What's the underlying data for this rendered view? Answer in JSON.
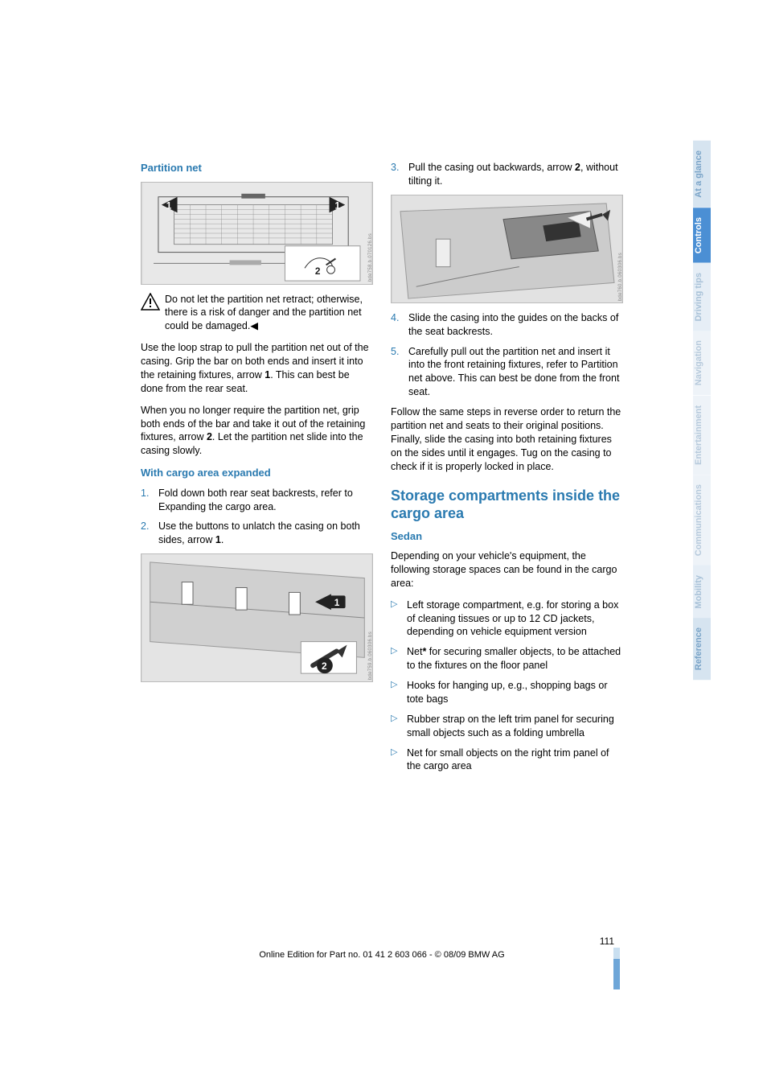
{
  "tabs": [
    {
      "label": "At a glance",
      "bg": "#d6e4f0",
      "fg": "#7aa4c8"
    },
    {
      "label": "Controls",
      "bg": "#4b8fd4",
      "fg": "#ffffff"
    },
    {
      "label": "Driving tips",
      "bg": "#e6eef6",
      "fg": "#a9c2d8"
    },
    {
      "label": "Navigation",
      "bg": "#eef3f8",
      "fg": "#b7cadc"
    },
    {
      "label": "Entertainment",
      "bg": "#eef3f8",
      "fg": "#b7cadc"
    },
    {
      "label": "Communications",
      "bg": "#eef3f8",
      "fg": "#b7cadc"
    },
    {
      "label": "Mobility",
      "bg": "#e6eef6",
      "fg": "#a9c2d8"
    },
    {
      "label": "Reference",
      "bg": "#d6e4f0",
      "fg": "#7aa4c8"
    }
  ],
  "left": {
    "h1": "Partition net",
    "warn": "Do not let the partition net retract; otherwise, there is a risk of danger and the partition net could be damaged.◀",
    "p1a": "Use the loop strap to pull the partition net out of the casing. Grip the bar on both ends and insert it into the retaining fixtures, arrow ",
    "p1b": ". This can best be done from the rear seat.",
    "bold1": "1",
    "p2a": "When you no longer require the partition net, grip both ends of the bar and take it out of the retaining fixtures, arrow ",
    "p2b": ". Let the partition net slide into the casing slowly.",
    "bold2": "2",
    "h2": "With cargo area expanded",
    "li1": "Fold down both rear seat backrests, refer to Expanding the cargo area.",
    "li2a": "Use the buttons to unlatch the casing on both sides, arrow ",
    "li2b": ".",
    "bold3": "1"
  },
  "right": {
    "li3a": "Pull the casing out backwards, arrow ",
    "li3b": ", without tilting it.",
    "bold3": "2",
    "li4": "Slide the casing into the guides on the backs of the seat backrests.",
    "li5": "Carefully pull out the partition net and insert it into the front retaining fixtures, refer to Partition net above. This can best be done from the front seat.",
    "p1": "Follow the same steps in reverse order to return the partition net and seats to their original positions. Finally, slide the casing into both retaining fixtures on the sides until it engages. Tug on the casing to check if it is properly locked in place.",
    "hbig": "Storage compartments inside the cargo area",
    "h2": "Sedan",
    "p2": "Depending on your vehicle's equipment, the following storage spaces can be found in the cargo area:",
    "b1": "Left storage compartment, e.g. for storing a box of cleaning tissues or up to 12 CD jackets, depending on vehicle equipment version",
    "b2a": "Net",
    "b2star": "*",
    "b2b": " for securing smaller objects, to be attached to the fixtures on the floor panel",
    "b3": "Hooks for hanging up, e.g., shopping bags or tote bags",
    "b4": "Rubber strap on the left trim panel for securing small objects such as a folding umbrella",
    "b5": "Net for small objects on the right trim panel of the cargo area"
  },
  "footer": {
    "page": "111",
    "line": "Online Edition for Part no. 01 41 2 603 066 - © 08/09 BMW AG"
  }
}
